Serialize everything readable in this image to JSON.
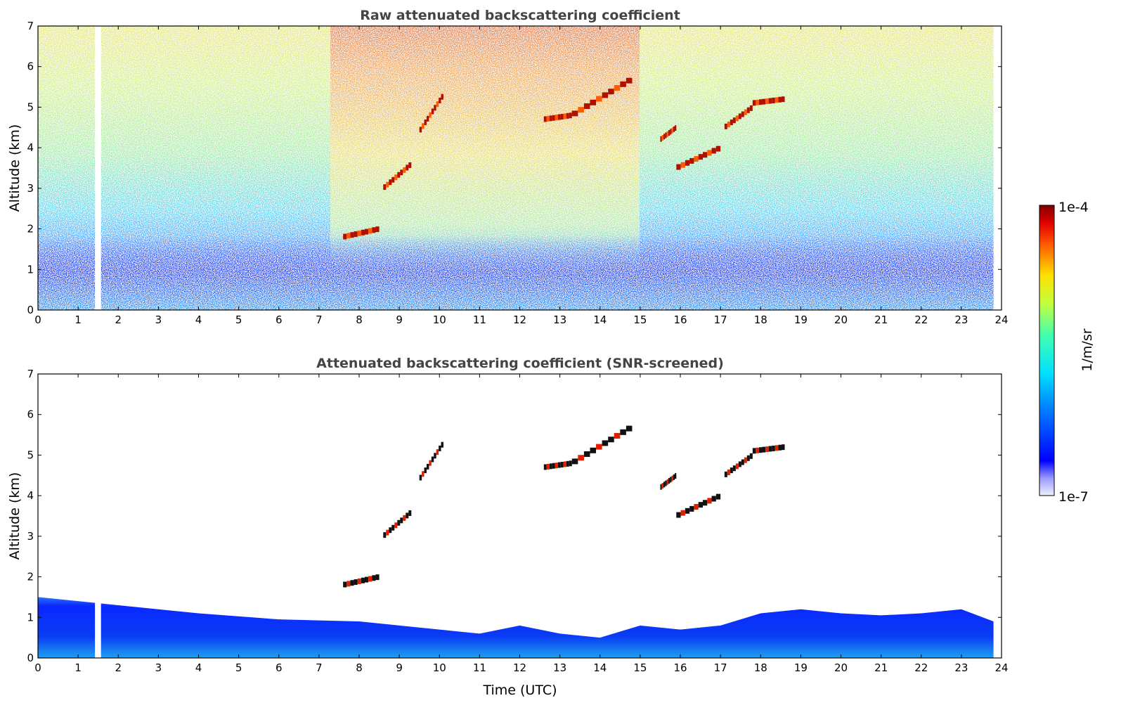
{
  "chart_data": [
    {
      "type": "heatmap",
      "title": "Raw attenuated backscattering coefficient",
      "xlabel": "",
      "ylabel": "Altitude (km)",
      "xlim": [
        0,
        24
      ],
      "ylim": [
        0,
        7
      ],
      "xticks": [
        "0",
        "1",
        "2",
        "3",
        "4",
        "5",
        "6",
        "7",
        "8",
        "9",
        "10",
        "11",
        "12",
        "13",
        "14",
        "15",
        "16",
        "17",
        "18",
        "19",
        "20",
        "21",
        "22",
        "23",
        "24"
      ],
      "yticks": [
        "0",
        "1",
        "2",
        "3",
        "4",
        "5",
        "6",
        "7"
      ],
      "data_gap_hours": [
        1.42,
        1.57
      ],
      "data_end_hour": 23.8,
      "boundary_layer_top_km": 0.8,
      "cloud_layers": [
        {
          "t": [
            7.6,
            8.5
          ],
          "alt": [
            1.8,
            2.0
          ]
        },
        {
          "t": [
            8.6,
            9.3
          ],
          "alt": [
            3.0,
            3.6
          ]
        },
        {
          "t": [
            9.5,
            10.1
          ],
          "alt": [
            4.4,
            5.3
          ]
        },
        {
          "t": [
            12.6,
            13.3
          ],
          "alt": [
            4.7,
            4.8
          ]
        },
        {
          "t": [
            13.3,
            14.8
          ],
          "alt": [
            4.8,
            5.7
          ]
        },
        {
          "t": [
            15.5,
            15.9
          ],
          "alt": [
            4.2,
            4.5
          ]
        },
        {
          "t": [
            15.9,
            17.0
          ],
          "alt": [
            3.5,
            4.0
          ]
        },
        {
          "t": [
            17.1,
            17.8
          ],
          "alt": [
            4.5,
            5.0
          ]
        },
        {
          "t": [
            17.8,
            18.6
          ],
          "alt": [
            5.1,
            5.2
          ]
        }
      ]
    },
    {
      "type": "heatmap",
      "title": "Attenuated backscattering coefficient (SNR-screened)",
      "xlabel": "Time (UTC)",
      "ylabel": "Altitude (km)",
      "xlim": [
        0,
        24
      ],
      "ylim": [
        0,
        7
      ],
      "xticks": [
        "0",
        "1",
        "2",
        "3",
        "4",
        "5",
        "6",
        "7",
        "8",
        "9",
        "10",
        "11",
        "12",
        "13",
        "14",
        "15",
        "16",
        "17",
        "18",
        "19",
        "20",
        "21",
        "22",
        "23",
        "24"
      ],
      "yticks": [
        "0",
        "1",
        "2",
        "3",
        "4",
        "5",
        "6",
        "7"
      ],
      "data_gap_hours": [
        1.42,
        1.57
      ],
      "data_end_hour": 23.8,
      "boundary_layer_top_km": [
        {
          "t": 0,
          "alt": 1.5
        },
        {
          "t": 2,
          "alt": 1.3
        },
        {
          "t": 4,
          "alt": 1.1
        },
        {
          "t": 6,
          "alt": 0.95
        },
        {
          "t": 8,
          "alt": 0.9
        },
        {
          "t": 10,
          "alt": 0.7
        },
        {
          "t": 11,
          "alt": 0.6
        },
        {
          "t": 12,
          "alt": 0.8
        },
        {
          "t": 13,
          "alt": 0.6
        },
        {
          "t": 14,
          "alt": 0.5
        },
        {
          "t": 15,
          "alt": 0.8
        },
        {
          "t": 16,
          "alt": 0.7
        },
        {
          "t": 17,
          "alt": 0.8
        },
        {
          "t": 18,
          "alt": 1.1
        },
        {
          "t": 19,
          "alt": 1.2
        },
        {
          "t": 20,
          "alt": 1.1
        },
        {
          "t": 21,
          "alt": 1.05
        },
        {
          "t": 22,
          "alt": 1.1
        },
        {
          "t": 23,
          "alt": 1.2
        },
        {
          "t": 23.8,
          "alt": 0.9
        }
      ]
    }
  ],
  "colorbar": {
    "label": "1/m/sr",
    "max_label": "1e-4",
    "min_label": "1e-7",
    "colormap": "jet",
    "scale": "log"
  },
  "colors": {
    "title_text": "#444444",
    "low_signal": "#0000ff",
    "high_signal": "#8b0000"
  }
}
